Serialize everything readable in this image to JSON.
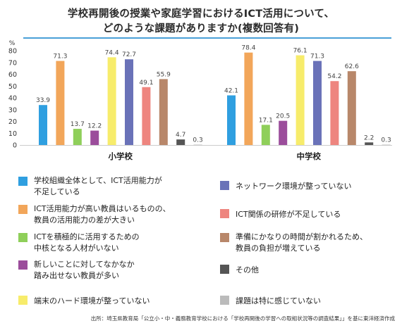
{
  "title_line1": "学校再開後の授業や家庭学習におけるICT活用について、",
  "title_line2": "どのような課題がありますか(複数回答有)",
  "source": "出所：埼玉県教育局「公立小・中・義務教育学校における「学校再開後の学習への取組状況等の調査結果」」を基に東洋経済作成",
  "legend_items": [
    {
      "line1": "学校組織全体として、ICT活用能力が",
      "line2": "不足している"
    },
    {
      "line1": "ICT活用能力が高い教員はいるものの、",
      "line2": "教員の活用能力の差が大きい"
    },
    {
      "line1": "ICTを積極的に活用するための",
      "line2": "中核となる人材がいない"
    },
    {
      "line1": "新しいことに対してなかなか",
      "line2": "踏み出せない教員が多い"
    },
    {
      "line1": "端末のハード環境が整っていない",
      "line2": ""
    },
    {
      "line1": "ネットワーク環境が整っていない",
      "line2": ""
    },
    {
      "line1": "ICT関係の研修が不足している",
      "line2": ""
    },
    {
      "line1": "準備にかなりの時間が割かれるため、",
      "line2": "教員の負担が増えている"
    },
    {
      "line1": "その他",
      "line2": ""
    },
    {
      "line1": "課題は特に感じていない",
      "line2": ""
    }
  ],
  "chart_data": {
    "type": "bar",
    "ylabel": "%",
    "ylim": [
      0,
      80
    ],
    "yticks": [
      0,
      10,
      20,
      30,
      40,
      50,
      60,
      70,
      80
    ],
    "grid": false,
    "categories": [
      "小学校",
      "中学校"
    ],
    "series": [
      {
        "name": "学校組織全体として、ICT活用能力が不足している",
        "color": "#2f9fe0",
        "values": [
          33.9,
          42.1
        ]
      },
      {
        "name": "ICT活用能力が高い教員はいるものの、教員の活用能力の差が大きい",
        "color": "#f2a65a",
        "values": [
          71.3,
          78.4
        ]
      },
      {
        "name": "ICTを積極的に活用するための中核となる人材がいない",
        "color": "#8fcf5a",
        "values": [
          13.7,
          17.1
        ]
      },
      {
        "name": "新しいことに対してなかなか踏み出せない教員が多い",
        "color": "#9b4d9b",
        "values": [
          12.2,
          20.5
        ]
      },
      {
        "name": "端末のハード環境が整っていない",
        "color": "#f7ec6b",
        "values": [
          74.4,
          76.1
        ]
      },
      {
        "name": "ネットワーク環境が整っていない",
        "color": "#6a72b8",
        "values": [
          72.7,
          71.3
        ]
      },
      {
        "name": "ICT関係の研修が不足している",
        "color": "#ee857f",
        "values": [
          49.1,
          54.2
        ]
      },
      {
        "name": "準備にかなりの時間が割かれるため、教員の負担が増えている",
        "color": "#b8876a",
        "values": [
          55.9,
          62.6
        ]
      },
      {
        "name": "その他",
        "color": "#555555",
        "values": [
          4.7,
          2.2
        ]
      },
      {
        "name": "課題は特に感じていない",
        "color": "#bbbbbb",
        "values": [
          0.3,
          0.3
        ]
      }
    ]
  }
}
